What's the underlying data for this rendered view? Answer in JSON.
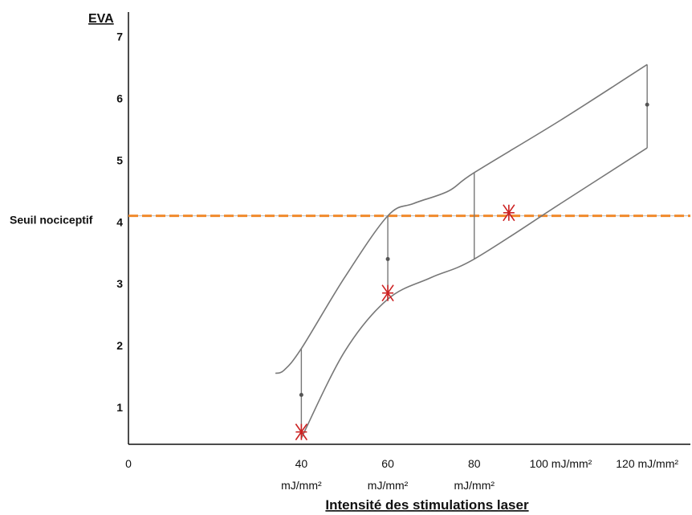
{
  "chart_data": {
    "type": "line",
    "ylabel": "EVA",
    "xlabel": "Intensité des stimulations laser",
    "y_ticks": [
      "1",
      "2",
      "3",
      "4",
      "5",
      "6",
      "7"
    ],
    "x_ticks": [
      {
        "value": 0,
        "line1": "0",
        "line2": ""
      },
      {
        "value": 40,
        "line1": "40",
        "line2": "mJ/mm²"
      },
      {
        "value": 60,
        "line1": "60",
        "line2": "mJ/mm²"
      },
      {
        "value": 80,
        "line1": "80",
        "line2": "mJ/mm²"
      },
      {
        "value": 100,
        "line1": "100 mJ/mm²",
        "line2": ""
      },
      {
        "value": 120,
        "line1": "120 mJ/mm²",
        "line2": ""
      }
    ],
    "xlim": [
      0,
      130
    ],
    "ylim": [
      0.4,
      7.4
    ],
    "threshold": {
      "label": "Seuil nociceptif",
      "value": 4.1,
      "color": "#f08a2c"
    },
    "upper_bound": [
      [
        34,
        1.55
      ],
      [
        36,
        1.6
      ],
      [
        40,
        1.95
      ],
      [
        50,
        3.1
      ],
      [
        60,
        4.1
      ],
      [
        66,
        4.3
      ],
      [
        74,
        4.5
      ],
      [
        80,
        4.8
      ],
      [
        100,
        5.65
      ],
      [
        120,
        6.55
      ]
    ],
    "lower_bound": [
      [
        40,
        0.5
      ],
      [
        50,
        1.9
      ],
      [
        60,
        2.75
      ],
      [
        70,
        3.1
      ],
      [
        80,
        3.4
      ],
      [
        100,
        4.3
      ],
      [
        120,
        5.2
      ]
    ],
    "ranges": [
      {
        "x": 40,
        "low": 0.5,
        "high": 1.95,
        "mean": 1.2
      },
      {
        "x": 60,
        "low": 2.75,
        "high": 4.1,
        "mean": 3.4
      },
      {
        "x": 80,
        "low": 3.4,
        "high": 4.8,
        "mean": null
      },
      {
        "x": 120,
        "low": 5.2,
        "high": 6.55,
        "mean": 5.9
      }
    ],
    "markers": [
      {
        "x": 40,
        "y": 0.6
      },
      {
        "x": 60,
        "y": 2.85
      },
      {
        "x": 88,
        "y": 4.15
      }
    ],
    "colors": {
      "curve": "#777777",
      "marker": "#cc2222",
      "mean": "#555555",
      "axis": "#111111"
    }
  }
}
